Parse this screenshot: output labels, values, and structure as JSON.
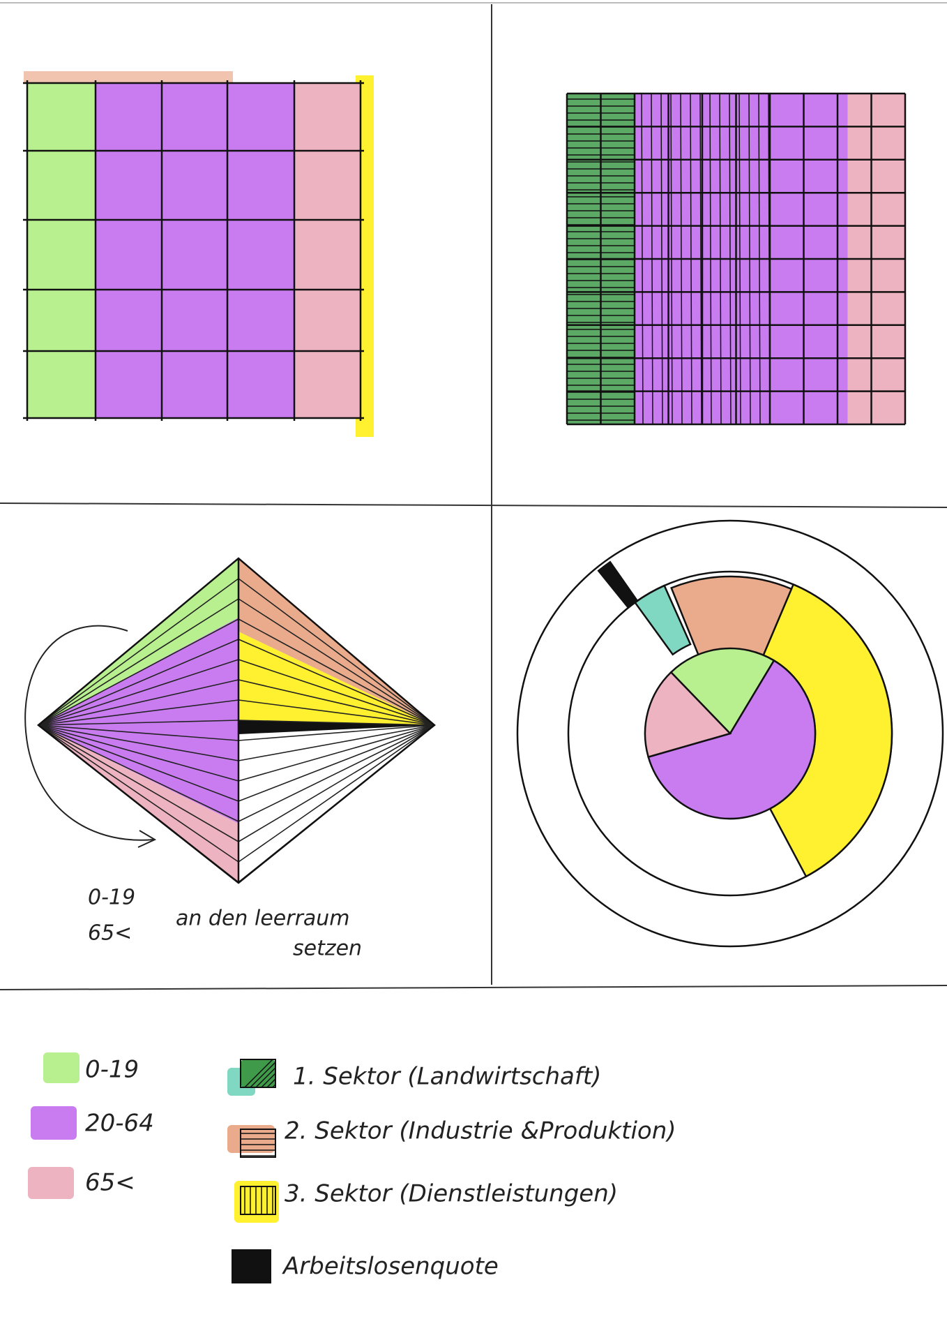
{
  "note": {
    "lines": [
      "0-19",
      "65<",
      "an den leerraum",
      "setzen"
    ]
  },
  "legend": {
    "age_groups": [
      "0-19",
      "20-64",
      "65<"
    ],
    "sectors": [
      "1. Sektor (Landwirtschaft)",
      "2. Sektor (Industrie &Produktion)",
      "3. Sektor (Dienstleistungen)",
      "Arbeitslosenquote"
    ]
  }
}
